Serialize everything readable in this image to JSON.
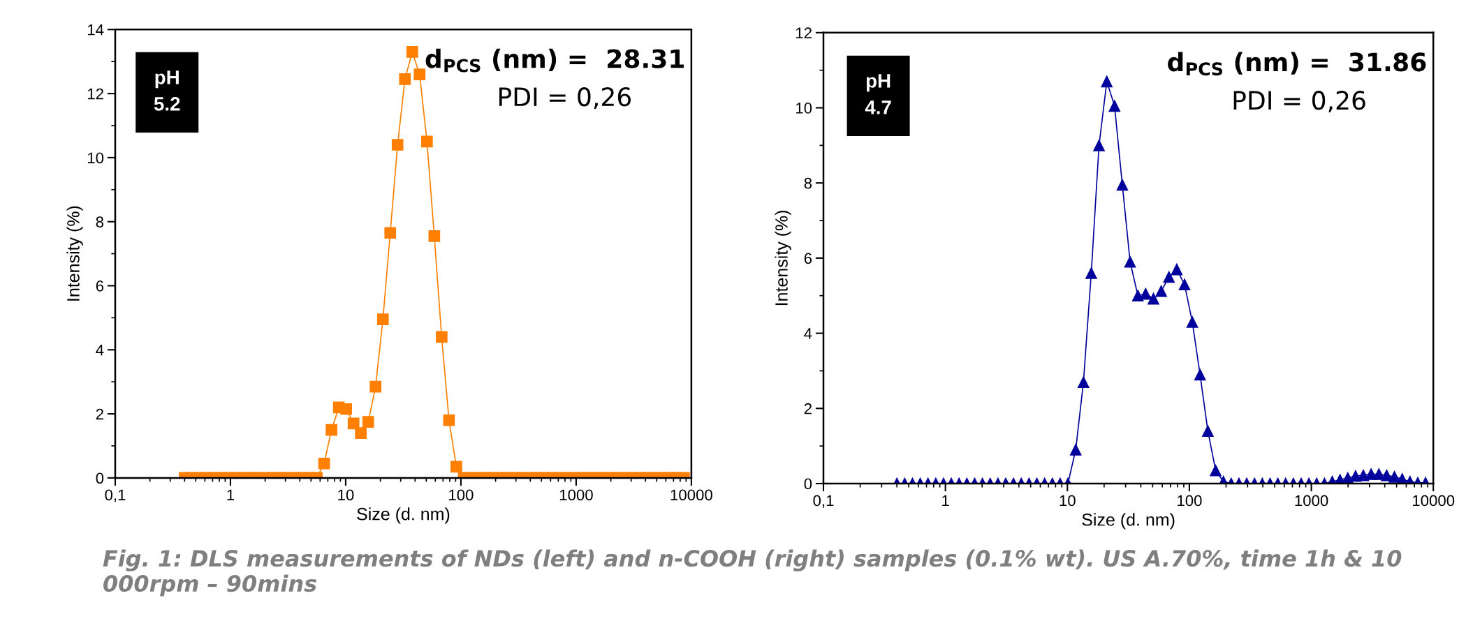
{
  "chart_data": [
    {
      "type": "line",
      "xlabel": "Size (d. nm)",
      "ylabel": "Intensity (%)",
      "log": "x",
      "marker": "square",
      "line_style": "solid",
      "grid": false,
      "legend": false,
      "xlim": [
        0.1,
        10000
      ],
      "xticks": [
        {
          "value": 0.1,
          "label": "0,1"
        },
        1,
        10,
        100,
        1000,
        10000
      ],
      "ylim": [
        0,
        14
      ],
      "yticks": [
        0,
        2,
        4,
        6,
        8,
        10,
        12,
        14
      ],
      "annotations": [
        "pH\n5.2",
        "d$_{PCS}$ (nm) =  28.31",
        "PDI = 0,26",
        "Fig. 1: DLS measurements of NDs (left) and n-COOH (right) samples (0.1% wt). US A.70%, time 1h & 10 000rpm – 90mins"
      ],
      "x": [
        0.4,
        0.4632,
        0.5365,
        0.6213,
        0.7195,
        0.8332,
        0.9649,
        1.117,
        1.294,
        1.499,
        1.736,
        2.01,
        2.328,
        2.696,
        3.122,
        3.615,
        4.187,
        4.849,
        5.615,
        6.503,
        7.531,
        8.721,
        10.1,
        11.7,
        13.54,
        15.69,
        18.17,
        21.04,
        24.36,
        28.21,
        32.67,
        37.84,
        43.82,
        50.75,
        58.77,
        68.06,
        78.82,
        91.28,
        105.7,
        122.4,
        141.8,
        164.2,
        190.1,
        220.2,
        255,
        295.3,
        342,
        396.1,
        458.7,
        531.2,
        615.1,
        712.4,
        825,
        955.4,
        1106,
        1281,
        1484,
        1718,
        1990,
        2305,
        2669,
        3091,
        3580,
        4145,
        4801,
        5560,
        6439,
        7456,
        8635
      ],
      "series": [
        {
          "color": "#ff7f00",
          "values": [
            0,
            0,
            0,
            0,
            0,
            0,
            0,
            0,
            0,
            0,
            0,
            0,
            0,
            0,
            0,
            0,
            0,
            0,
            0,
            0.45,
            1.5,
            2.2,
            2.15,
            1.7,
            1.4,
            1.75,
            2.85,
            4.95,
            7.65,
            10.4,
            12.45,
            13.3,
            12.6,
            10.5,
            7.55,
            4.4,
            1.8,
            0.35,
            0,
            0,
            0,
            0,
            0,
            0,
            0,
            0,
            0,
            0,
            0,
            0,
            0,
            0,
            0,
            0,
            0,
            0,
            0,
            0,
            0,
            0,
            0,
            0,
            0,
            0,
            0,
            0,
            0,
            0,
            0
          ]
        }
      ]
    },
    {
      "type": "line",
      "xlabel": "Size (d. nm)",
      "ylabel": "Intensity (%)",
      "log": "x",
      "marker": "triangle",
      "line_style": "solid",
      "grid": false,
      "legend": false,
      "xlim": [
        0.1,
        10000
      ],
      "xticks": [
        {
          "value": 0.1,
          "label": "0,1"
        },
        1,
        10,
        100,
        1000,
        10000
      ],
      "ylim": [
        0,
        12
      ],
      "yticks": [
        0,
        2,
        4,
        6,
        8,
        10,
        12
      ],
      "annotations": [
        "pH\n4.7",
        "d$_{PCS}$ (nm) =  31.86",
        "PDI = 0,26"
      ],
      "x": [
        0.4,
        0.4632,
        0.5365,
        0.6213,
        0.7195,
        0.8332,
        0.9649,
        1.117,
        1.294,
        1.499,
        1.736,
        2.01,
        2.328,
        2.696,
        3.122,
        3.615,
        4.187,
        4.849,
        5.615,
        6.503,
        7.531,
        8.721,
        10.1,
        11.7,
        13.54,
        15.69,
        18.17,
        21.04,
        24.36,
        28.21,
        32.67,
        37.84,
        43.82,
        50.75,
        58.77,
        68.06,
        78.82,
        91.28,
        105.7,
        122.4,
        141.8,
        164.2,
        190.1,
        220.2,
        255,
        295.3,
        342,
        396.1,
        458.7,
        531.2,
        615.1,
        712.4,
        825,
        955.4,
        1106,
        1281,
        1484,
        1718,
        1990,
        2305,
        2669,
        3091,
        3580,
        4145,
        4801,
        5560,
        6439,
        7456,
        8635
      ],
      "series": [
        {
          "color": "#00009c",
          "values": [
            0,
            0,
            0,
            0,
            0,
            0,
            0,
            0,
            0,
            0,
            0,
            0,
            0,
            0,
            0,
            0,
            0,
            0,
            0,
            0,
            0,
            0,
            0,
            0.9,
            2.7,
            5.6,
            9.0,
            10.7,
            10.05,
            7.95,
            5.9,
            5.0,
            5.05,
            4.92,
            5.12,
            5.5,
            5.7,
            5.3,
            4.3,
            2.9,
            1.4,
            0.35,
            0.05,
            0,
            0,
            0,
            0,
            0,
            0,
            0,
            0,
            0,
            0,
            0,
            0,
            0,
            0.05,
            0.1,
            0.15,
            0.2,
            0.22,
            0.25,
            0.25,
            0.22,
            0.18,
            0.12,
            0.05,
            0.02,
            0.02
          ]
        }
      ]
    }
  ]
}
